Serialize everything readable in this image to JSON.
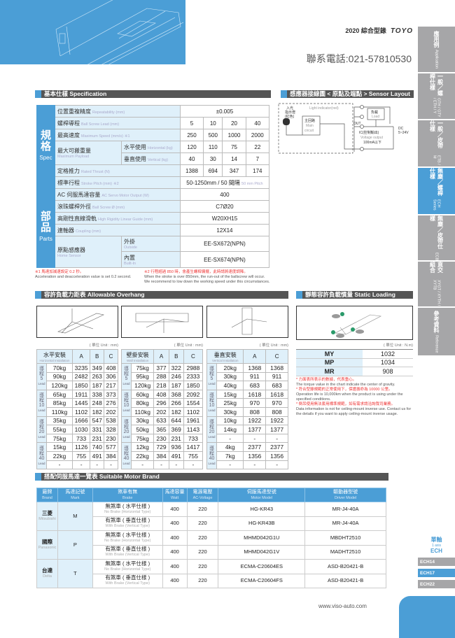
{
  "header": {
    "catalog": "2020 綜合型錄",
    "brand": "TOYO",
    "phone": "聯系電話:021-57810530"
  },
  "sidebar": [
    {
      "zh": "應用例",
      "en": "Application"
    },
    {
      "zh": "一般／螺桿仕樣",
      "en": "GTH / GTY / ETH / Y"
    },
    {
      "zh": "一般／皮帶仕樣",
      "en": "ETB / M"
    },
    {
      "zh": "無塵／螺桿仕樣",
      "en": "ECH Series",
      "active": true
    },
    {
      "zh": "無塵／皮帶仕樣",
      "en": "ECB"
    },
    {
      "zh": "直交組合",
      "en": "XYGT / XYTH / XYTB"
    },
    {
      "zh": "參考資料",
      "en": "Reference"
    }
  ],
  "spec": {
    "title": "基本仕樣 Specification",
    "group_spec": {
      "zh": "規格",
      "en": "Spec"
    },
    "group_parts": {
      "zh": "部品",
      "en": "Parts"
    },
    "repeatability": {
      "zh": "位置重複精度",
      "en": "Repeatability (mm)",
      "value": "±0.005"
    },
    "lead": {
      "zh": "螺桿導程",
      "en": "Ball Screw Lead (mm)",
      "values": [
        "5",
        "10",
        "20",
        "40"
      ]
    },
    "speed": {
      "zh": "最高速度",
      "en": "Maximum Speed (mm/s)",
      "mark": "※1",
      "values": [
        "250",
        "500",
        "1000",
        "2000"
      ]
    },
    "payload": {
      "zh": "最大可搬重量",
      "en": "Maximum Payload",
      "horizontal": {
        "zh": "水平使用",
        "en": "Horizontal (kg)",
        "values": [
          "120",
          "110",
          "75",
          "22"
        ]
      },
      "vertical": {
        "zh": "垂直使用",
        "en": "Vertical (kg)",
        "values": [
          "40",
          "30",
          "14",
          "7"
        ]
      }
    },
    "thrust": {
      "zh": "定格推力",
      "en": "Rated Thrust (N)",
      "values": [
        "1388",
        "694",
        "347",
        "174"
      ]
    },
    "stroke": {
      "zh": "標準行程",
      "en": "Stroke Pitch (mm)",
      "mark": "※2",
      "value": "50-1250mm / 50 間隔",
      "value_en": "50 mm Pitch"
    },
    "motor": {
      "zh": "AC 伺服馬達容量",
      "en": "AC Servo Motor Output (W)",
      "value": "400"
    },
    "screw": {
      "zh": "滾珠螺桿外徑",
      "en": "Ball Screw Ø (mm)",
      "value": "C7Ø20"
    },
    "guide": {
      "zh": "高剛性直線滑軌",
      "en": "High Rigidity Linear Guide (mm)",
      "value": "W20XH15"
    },
    "coupling": {
      "zh": "連軸器",
      "en": "Coupling (mm)",
      "value": "12X14"
    },
    "sensor": {
      "zh": "原點感應器",
      "en": "Home Sensor",
      "outside": {
        "zh": "外掛",
        "en": "Outside",
        "value": "EE-SX672(NPN)"
      },
      "builtin": {
        "zh": "內置",
        "en": "Built-In",
        "value": "EE-SX674(NPN)"
      }
    },
    "note1_zh": "※1 馬達加減速設定 0.2 秒。",
    "note1_en": "Acceleration and deacceleration value is set 0.2 second.",
    "note2_zh": "※2 行程超過 850 時，會產生螺桿偏擺，此時請將速度調降。",
    "note2_en1": "When the stroke is over 850mm, the run-out of the ballscrew will occur.",
    "note2_en2": "We recommend to low down   the working speed under this circumstances."
  },
  "sensor_layout": {
    "title": "感應器接線圖 < 原點及端點 > Sensor Layout",
    "light": "Light indicator(red)",
    "led_zh1": "入光",
    "led_zh2": "指示燈",
    "led_zh3": "(紅色)",
    "main_zh": "主回路",
    "main_en1": "Main",
    "main_en2": "circuit",
    "load_zh": "負載",
    "load_en": "Load",
    "out": "OUT",
    "ic": "IC(控制輸出)",
    "vout": "Voltage output",
    "ma": "100mA以下",
    "dc": "DC",
    "dcv": "5~24V"
  },
  "overhang": {
    "title": "容許負載力距表 Allowable Overhang",
    "unit": "( 單位 Unit : mm)",
    "lead_zh": "導程",
    "lead_en": "Lead",
    "tables": [
      {
        "zh": "水平安裝",
        "en": "Horizontal Installation",
        "cols": [
          "A",
          "B",
          "C"
        ],
        "groups": [
          {
            "lead": "5",
            "rows": [
              [
                "70kg",
                "3235",
                "349",
                "408"
              ],
              [
                "90kg",
                "2482",
                "263",
                "306"
              ],
              [
                "120kg",
                "1850",
                "187",
                "217"
              ]
            ]
          },
          {
            "lead": "10",
            "rows": [
              [
                "65kg",
                "1911",
                "338",
                "373"
              ],
              [
                "85kg",
                "1445",
                "248",
                "276"
              ],
              [
                "110kg",
                "1102",
                "182",
                "202"
              ]
            ]
          },
          {
            "lead": "20",
            "rows": [
              [
                "35kg",
                "1666",
                "547",
                "538"
              ],
              [
                "55kg",
                "1030",
                "331",
                "328"
              ],
              [
                "75kg",
                "733",
                "231",
                "230"
              ]
            ]
          },
          {
            "lead": "40",
            "rows": [
              [
                "15kg",
                "1126",
                "740",
                "577"
              ],
              [
                "22kg",
                "755",
                "491",
                "384"
              ],
              [
                "-",
                "-",
                "-",
                "-"
              ]
            ]
          }
        ]
      },
      {
        "zh": "壁掛安裝",
        "en": "Wall Installation",
        "cols": [
          "A",
          "B",
          "C"
        ],
        "groups": [
          {
            "lead": "5",
            "rows": [
              [
                "75kg",
                "377",
                "322",
                "2988"
              ],
              [
                "95kg",
                "288",
                "246",
                "2333"
              ],
              [
                "120kg",
                "218",
                "187",
                "1850"
              ]
            ]
          },
          {
            "lead": "10",
            "rows": [
              [
                "60kg",
                "408",
                "368",
                "2092"
              ],
              [
                "80kg",
                "296",
                "266",
                "1554"
              ],
              [
                "110kg",
                "202",
                "182",
                "1102"
              ]
            ]
          },
          {
            "lead": "20",
            "rows": [
              [
                "30kg",
                "633",
                "644",
                "1961"
              ],
              [
                "50kg",
                "365",
                "369",
                "1143"
              ],
              [
                "75kg",
                "230",
                "231",
                "733"
              ]
            ]
          },
          {
            "lead": "40",
            "rows": [
              [
                "12kg",
                "729",
                "936",
                "1417"
              ],
              [
                "22kg",
                "384",
                "491",
                "755"
              ],
              [
                "-",
                "-",
                "-",
                "-"
              ]
            ]
          }
        ]
      },
      {
        "zh": "垂直安裝",
        "en": "Vertical Installation",
        "cols": [
          "A",
          "C"
        ],
        "groups": [
          {
            "lead": "5",
            "rows": [
              [
                "20kg",
                "1368",
                "1368"
              ],
              [
                "30kg",
                "911",
                "911"
              ],
              [
                "40kg",
                "683",
                "683"
              ]
            ]
          },
          {
            "lead": "10",
            "rows": [
              [
                "15kg",
                "1618",
                "1618"
              ],
              [
                "25kg",
                "970",
                "970"
              ],
              [
                "30kg",
                "808",
                "808"
              ]
            ]
          },
          {
            "lead": "20",
            "rows": [
              [
                "10kg",
                "1922",
                "1922"
              ],
              [
                "14kg",
                "1377",
                "1377"
              ],
              [
                "-",
                "-",
                "-"
              ]
            ]
          },
          {
            "lead": "40",
            "rows": [
              [
                "4kg",
                "2377",
                "2377"
              ],
              [
                "7kg",
                "1356",
                "1356"
              ],
              [
                "-",
                "-",
                "-"
              ]
            ]
          }
        ]
      }
    ]
  },
  "static_moment": {
    "title": "靜態容許負載慣量 Static Loading Moment",
    "unit": "( 單位 Unit : N.m)",
    "rows": [
      [
        "MY",
        "1032"
      ],
      [
        "MP",
        "1034"
      ],
      [
        "MR",
        "908"
      ]
    ],
    "notes": [
      {
        "zh": "* 力面表所表示的數據，代表重心。",
        "en": "The torque value in the chart indicate the center of gravity."
      },
      {
        "zh": "* 符合型錄規範的正常使用下，保證壽命為 10000 公里。",
        "en": "Operation life is 10,000km when the product is using under the specified conditions."
      },
      {
        "zh": "* 倒吊使用無法套用標準規範，如有需求請洽詢我司業務。",
        "en": "Data information is not for ceiling-mount inverse use. Contact us for the details if you want to apply ceiling-mount inverse usage."
      }
    ]
  },
  "motor_brand": {
    "title": "搭配伺服馬達一覽表 Suitable Motor Brand",
    "headers": [
      [
        "廠牌",
        "Brand"
      ],
      [
        "馬達記號",
        "Mark"
      ],
      [
        "煞車有無",
        "Brake"
      ],
      [
        "馬達容量",
        "Watt"
      ],
      [
        "電源電壓",
        "AC-Voltage"
      ],
      [
        "伺服馬達型號",
        "Motor Model"
      ],
      [
        "驅動器型號",
        "Driver Model"
      ]
    ],
    "brands": [
      {
        "zh": "三菱",
        "en": "Mitsubishi",
        "mark": "M",
        "rows": [
          {
            "brake_zh": "無煞車 ( 水平仕樣 )",
            "brake_en": "No Brake (Horizontal Type)",
            "watt": "400",
            "volt": "220",
            "motor": "HG-KR43",
            "driver": "MR-J4-40A"
          },
          {
            "brake_zh": "有煞車 ( 垂直仕樣 )",
            "brake_en": "With Brake (Vertical Type)",
            "watt": "400",
            "volt": "220",
            "motor": "HG-KR43B",
            "driver": "MR-J4-40A"
          }
        ]
      },
      {
        "zh": "國際",
        "en": "Panasonic",
        "mark": "P",
        "rows": [
          {
            "brake_zh": "無煞車 ( 水平仕樣 )",
            "brake_en": "No Brake (Horizontal Type)",
            "watt": "400",
            "volt": "220",
            "motor": "MHMD042G1U",
            "driver": "MBDHT2510"
          },
          {
            "brake_zh": "有煞車 ( 垂直仕樣 )",
            "brake_en": "With Brake (Vertical Type)",
            "watt": "400",
            "volt": "220",
            "motor": "MHMD042G1V",
            "driver": "MADHT2510"
          }
        ]
      },
      {
        "zh": "台達",
        "en": "Delta",
        "mark": "T",
        "rows": [
          {
            "brake_zh": "無煞車 ( 水平仕樣 )",
            "brake_en": "No Brake (Horizontal Type)",
            "watt": "400",
            "volt": "220",
            "motor": "ECMA-C20604ES",
            "driver": "ASD-B20421-B"
          },
          {
            "brake_zh": "有煞車 ( 垂直仕樣 )",
            "brake_en": "With Brake (Vertical Type)",
            "watt": "400",
            "volt": "220",
            "motor": "ECMA-C20604FS",
            "driver": "ASD-B20421-B"
          }
        ]
      }
    ]
  },
  "axis": {
    "zh": "單軸",
    "en": "1 axis",
    "series": "ECH",
    "models": [
      {
        "label": "ECH14"
      },
      {
        "label": "ECH17",
        "active": true
      },
      {
        "label": "ECH22"
      }
    ]
  },
  "footer": {
    "url": "www.viso-auto.com"
  },
  "colors": {
    "accent": "#4b9ed6",
    "header_bar": "#555555",
    "light_cell": "#dff0fa",
    "tab_gray": "#a6a6a8",
    "note_red": "#ee3333"
  }
}
